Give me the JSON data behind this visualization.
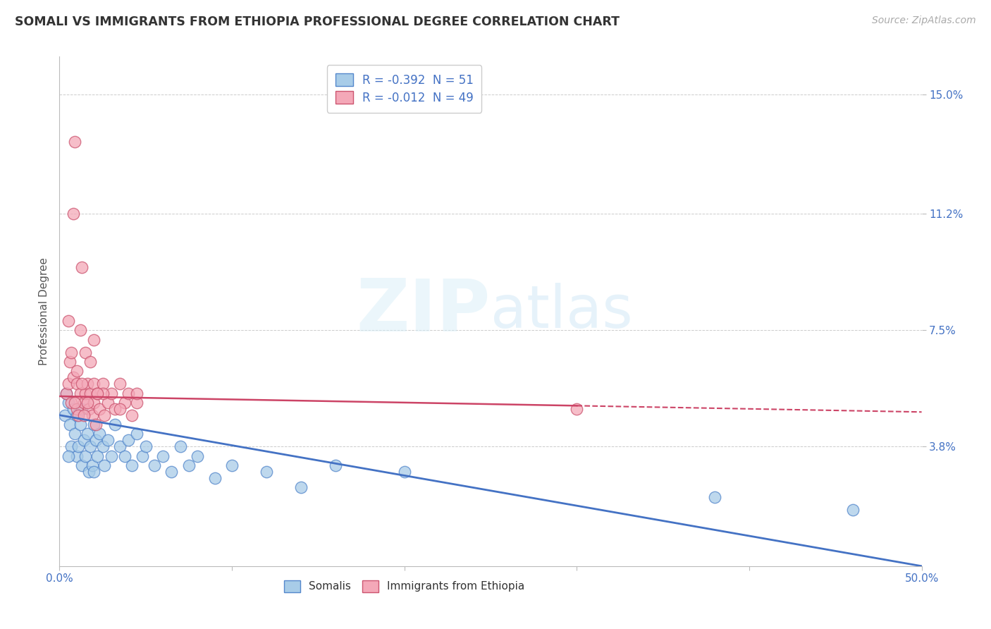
{
  "title": "SOMALI VS IMMIGRANTS FROM ETHIOPIA PROFESSIONAL DEGREE CORRELATION CHART",
  "source": "Source: ZipAtlas.com",
  "ylabel": "Professional Degree",
  "y_ticks": [
    0.0,
    3.8,
    7.5,
    11.2,
    15.0
  ],
  "y_tick_labels": [
    "",
    "3.8%",
    "7.5%",
    "11.2%",
    "15.0%"
  ],
  "x_ticks": [
    0.0,
    10.0,
    20.0,
    30.0,
    40.0,
    50.0
  ],
  "xlim": [
    0.0,
    50.0
  ],
  "ylim": [
    0.0,
    16.2
  ],
  "legend_entries": [
    {
      "label": "R = -0.392  N = 51",
      "color": "#A8CCE8"
    },
    {
      "label": "R = -0.012  N = 49",
      "color": "#F4A8B8"
    }
  ],
  "legend_labels_bottom": [
    "Somalis",
    "Immigrants from Ethiopia"
  ],
  "somali_color": "#A8CCE8",
  "ethiopia_color": "#F4A8B8",
  "somali_edge_color": "#5588CC",
  "ethiopia_edge_color": "#CC5570",
  "somali_line_color": "#4472C4",
  "ethiopia_line_color": "#CC4466",
  "watermark_text": "ZIPatlas",
  "background_color": "#FFFFFF",
  "grid_color": "#CCCCCC",
  "somali_scatter": [
    [
      0.3,
      4.8
    ],
    [
      0.5,
      5.2
    ],
    [
      0.6,
      4.5
    ],
    [
      0.7,
      3.8
    ],
    [
      0.8,
      5.0
    ],
    [
      0.9,
      4.2
    ],
    [
      1.0,
      3.5
    ],
    [
      1.0,
      4.8
    ],
    [
      1.1,
      3.8
    ],
    [
      1.2,
      4.5
    ],
    [
      1.3,
      3.2
    ],
    [
      1.4,
      4.0
    ],
    [
      1.5,
      3.5
    ],
    [
      1.6,
      4.2
    ],
    [
      1.7,
      3.0
    ],
    [
      1.8,
      3.8
    ],
    [
      1.9,
      3.2
    ],
    [
      2.0,
      4.5
    ],
    [
      2.0,
      3.0
    ],
    [
      2.1,
      4.0
    ],
    [
      2.2,
      3.5
    ],
    [
      2.3,
      4.2
    ],
    [
      2.5,
      3.8
    ],
    [
      2.6,
      3.2
    ],
    [
      2.8,
      4.0
    ],
    [
      3.0,
      3.5
    ],
    [
      3.2,
      4.5
    ],
    [
      3.5,
      3.8
    ],
    [
      3.8,
      3.5
    ],
    [
      4.0,
      4.0
    ],
    [
      4.2,
      3.2
    ],
    [
      4.5,
      4.2
    ],
    [
      4.8,
      3.5
    ],
    [
      5.0,
      3.8
    ],
    [
      5.5,
      3.2
    ],
    [
      6.0,
      3.5
    ],
    [
      6.5,
      3.0
    ],
    [
      7.0,
      3.8
    ],
    [
      7.5,
      3.2
    ],
    [
      8.0,
      3.5
    ],
    [
      9.0,
      2.8
    ],
    [
      10.0,
      3.2
    ],
    [
      12.0,
      3.0
    ],
    [
      14.0,
      2.5
    ],
    [
      16.0,
      3.2
    ],
    [
      0.4,
      5.5
    ],
    [
      0.5,
      3.5
    ],
    [
      1.3,
      5.0
    ],
    [
      38.0,
      2.2
    ],
    [
      46.0,
      1.8
    ],
    [
      20.0,
      3.0
    ]
  ],
  "ethiopia_scatter": [
    [
      0.4,
      5.5
    ],
    [
      0.5,
      5.8
    ],
    [
      0.6,
      6.5
    ],
    [
      0.7,
      5.2
    ],
    [
      0.8,
      6.0
    ],
    [
      0.9,
      13.5
    ],
    [
      1.0,
      5.0
    ],
    [
      1.0,
      5.8
    ],
    [
      1.1,
      4.8
    ],
    [
      1.2,
      5.5
    ],
    [
      1.3,
      9.5
    ],
    [
      1.4,
      5.2
    ],
    [
      1.5,
      5.5
    ],
    [
      1.6,
      5.8
    ],
    [
      1.7,
      5.0
    ],
    [
      1.8,
      5.5
    ],
    [
      1.9,
      4.8
    ],
    [
      2.0,
      5.2
    ],
    [
      2.0,
      5.8
    ],
    [
      2.1,
      4.5
    ],
    [
      2.2,
      5.5
    ],
    [
      2.3,
      5.0
    ],
    [
      2.5,
      5.8
    ],
    [
      2.6,
      4.8
    ],
    [
      2.8,
      5.2
    ],
    [
      3.0,
      5.5
    ],
    [
      3.2,
      5.0
    ],
    [
      3.5,
      5.8
    ],
    [
      3.8,
      5.2
    ],
    [
      4.0,
      5.5
    ],
    [
      4.2,
      4.8
    ],
    [
      4.5,
      5.2
    ],
    [
      0.8,
      11.2
    ],
    [
      1.2,
      7.5
    ],
    [
      1.5,
      6.8
    ],
    [
      1.8,
      6.5
    ],
    [
      2.0,
      7.2
    ],
    [
      0.5,
      7.8
    ],
    [
      1.0,
      6.2
    ],
    [
      2.5,
      5.5
    ],
    [
      0.7,
      6.8
    ],
    [
      1.3,
      5.8
    ],
    [
      1.6,
      5.2
    ],
    [
      2.2,
      5.5
    ],
    [
      3.5,
      5.0
    ],
    [
      4.5,
      5.5
    ],
    [
      0.9,
      5.2
    ],
    [
      1.4,
      4.8
    ],
    [
      30.0,
      5.0
    ]
  ],
  "somali_regression_solid": {
    "x_start": 0.0,
    "y_start": 4.8,
    "x_end": 50.0,
    "y_end": 0.0
  },
  "ethiopia_regression_solid": {
    "x_start": 0.0,
    "y_start": 5.4,
    "x_end": 30.0,
    "y_end": 5.1
  },
  "ethiopia_regression_dashed": {
    "x_start": 30.0,
    "y_start": 5.1,
    "x_end": 50.0,
    "y_end": 4.9
  }
}
